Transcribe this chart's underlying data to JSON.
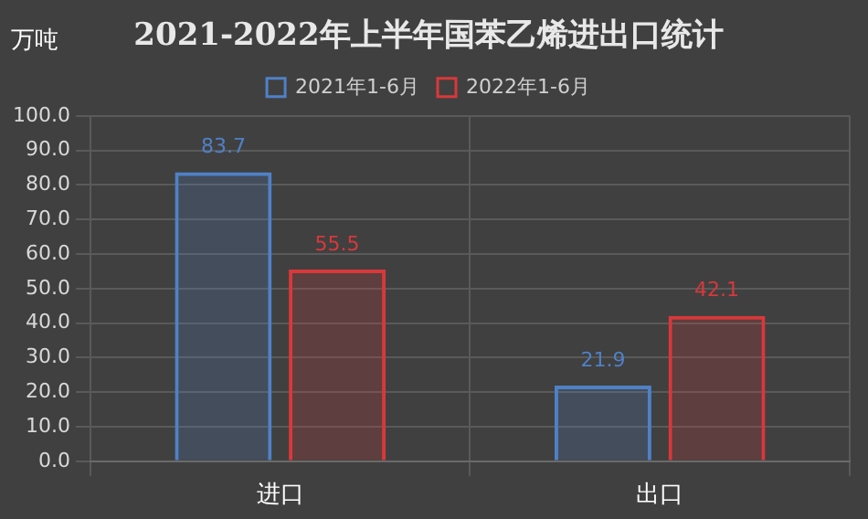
{
  "chart_data": {
    "type": "bar",
    "title": "2021-2022年上半年国苯乙烯进出口统计",
    "ylabel": "万吨",
    "categories": [
      "进口",
      "出口"
    ],
    "series": [
      {
        "name": "2021年1-6月",
        "color": "#4f81c7",
        "values": [
          83.7,
          21.9
        ]
      },
      {
        "name": "2022年1-6月",
        "color": "#d9383a",
        "values": [
          55.5,
          42.1
        ]
      }
    ],
    "ylim": [
      0,
      100
    ],
    "yticks": [
      {
        "value": 0,
        "label": "0.0"
      },
      {
        "value": 10,
        "label": "10.0"
      },
      {
        "value": 20,
        "label": "20.0"
      },
      {
        "value": 30,
        "label": "30.0"
      },
      {
        "value": 40,
        "label": "40.0"
      },
      {
        "value": 50,
        "label": "50.0"
      },
      {
        "value": 60,
        "label": "60.0"
      },
      {
        "value": 70,
        "label": "70.0"
      },
      {
        "value": 80,
        "label": "80.0"
      },
      {
        "value": 90,
        "label": "90.0"
      },
      {
        "value": 100,
        "label": "100.0"
      }
    ],
    "grid": true,
    "legend": "top",
    "data_labels": true
  }
}
